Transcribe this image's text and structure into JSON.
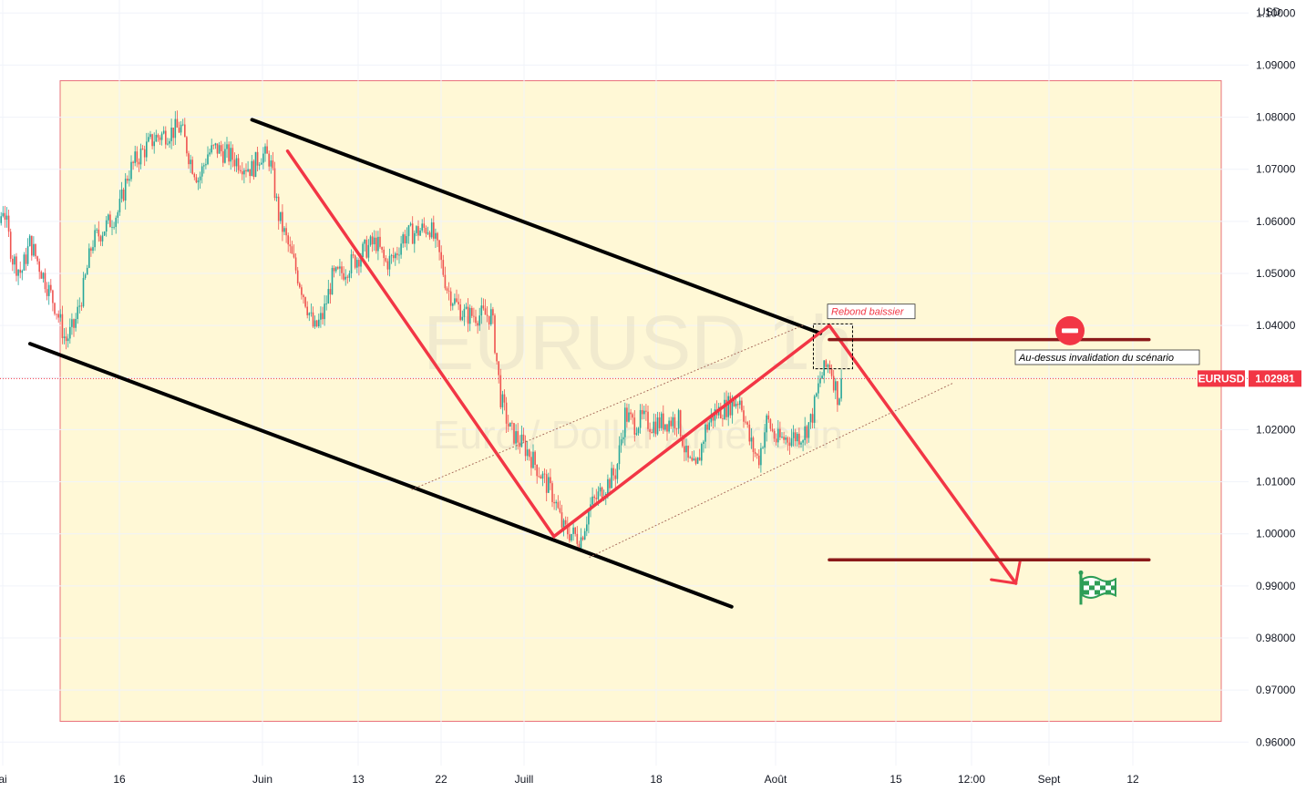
{
  "chart_data": {
    "type": "candlestick",
    "symbol": "EURUSD",
    "watermark_symbol": "EURUSD",
    "watermark_timeframe": "1h",
    "watermark_description": "Euro / Dollar Américain",
    "currency_label": "USD",
    "last_price": "1.02981",
    "y_ticks": [
      "1.10000",
      "1.09000",
      "1.08000",
      "1.07000",
      "1.06000",
      "1.05000",
      "1.04000",
      "1.03000",
      "1.02000",
      "1.01000",
      "1.00000",
      "0.99000",
      "0.98000",
      "0.97000",
      "0.96000"
    ],
    "x_ticks": [
      "ai",
      "16",
      "Juin",
      "13",
      "22",
      "Juill",
      "18",
      "Août",
      "15",
      "12:00",
      "Sept",
      "12"
    ],
    "ylim": [
      0.9555,
      1.1025
    ],
    "x_range": [
      "2022-05-05",
      "2022-09-19"
    ],
    "price_path": [
      [
        "2022-05-05",
        1.057
      ],
      [
        "2022-05-06",
        1.053
      ],
      [
        "2022-05-09",
        1.056
      ],
      [
        "2022-05-10",
        1.063
      ],
      [
        "2022-05-11",
        1.053
      ],
      [
        "2022-05-12",
        1.05
      ],
      [
        "2022-05-13",
        1.056
      ],
      [
        "2022-05-16",
        1.043
      ],
      [
        "2022-05-17",
        1.037
      ],
      [
        "2022-05-18",
        1.04
      ],
      [
        "2022-05-19",
        1.047
      ],
      [
        "2022-05-20",
        1.056
      ],
      [
        "2022-05-23",
        1.062
      ],
      [
        "2022-05-24",
        1.069
      ],
      [
        "2022-05-25",
        1.072
      ],
      [
        "2022-05-26",
        1.074
      ],
      [
        "2022-05-27",
        1.076
      ],
      [
        "2022-05-30",
        1.078
      ],
      [
        "2022-05-31",
        1.072
      ],
      [
        "2022-06-01",
        1.068
      ],
      [
        "2022-06-02",
        1.073
      ],
      [
        "2022-06-03",
        1.074
      ],
      [
        "2022-06-06",
        1.071
      ],
      [
        "2022-06-07",
        1.07
      ],
      [
        "2022-06-08",
        1.073
      ],
      [
        "2022-06-09",
        1.072
      ],
      [
        "2022-06-10",
        1.061
      ],
      [
        "2022-06-13",
        1.045
      ],
      [
        "2022-06-14",
        1.039
      ],
      [
        "2022-06-15",
        1.042
      ],
      [
        "2022-06-16",
        1.049
      ],
      [
        "2022-06-17",
        1.05
      ],
      [
        "2022-06-20",
        1.055
      ],
      [
        "2022-06-21",
        1.056
      ],
      [
        "2022-06-22",
        1.052
      ],
      [
        "2022-06-23",
        1.053
      ],
      [
        "2022-06-24",
        1.057
      ],
      [
        "2022-06-27",
        1.059
      ],
      [
        "2022-06-28",
        1.054
      ],
      [
        "2022-06-29",
        1.047
      ],
      [
        "2022-06-30",
        1.044
      ],
      [
        "2022-07-01",
        1.042
      ],
      [
        "2022-07-04",
        1.042
      ],
      [
        "2022-07-05",
        1.026
      ],
      [
        "2022-07-06",
        1.02
      ],
      [
        "2022-07-07",
        1.018
      ],
      [
        "2022-07-08",
        1.016
      ],
      [
        "2022-07-11",
        1.007
      ],
      [
        "2022-07-12",
        1.001
      ],
      [
        "2022-07-13",
        1.0
      ],
      [
        "2022-07-14",
        0.999
      ],
      [
        "2022-07-15",
        1.005
      ],
      [
        "2022-07-18",
        1.012
      ],
      [
        "2022-07-19",
        1.023
      ],
      [
        "2022-07-20",
        1.021
      ],
      [
        "2022-07-21",
        1.022
      ],
      [
        "2022-07-22",
        1.021
      ],
      [
        "2022-07-25",
        1.022
      ],
      [
        "2022-07-26",
        1.014
      ],
      [
        "2022-07-27",
        1.012
      ],
      [
        "2022-07-28",
        1.02
      ],
      [
        "2022-07-29",
        1.023
      ],
      [
        "2022-08-01",
        1.026
      ],
      [
        "2022-08-02",
        1.018
      ],
      [
        "2022-08-03",
        1.014
      ],
      [
        "2022-08-04",
        1.022
      ],
      [
        "2022-08-05",
        1.018
      ],
      [
        "2022-08-08",
        1.019
      ],
      [
        "2022-08-09",
        1.022
      ],
      [
        "2022-08-10",
        1.03
      ],
      [
        "2022-08-11",
        1.033
      ],
      [
        "2022-08-12",
        1.026
      ],
      [
        "2022-08-12T12:00",
        1.0298
      ]
    ],
    "background_zone": {
      "from": "2022-05-05",
      "to": "2022-09-18",
      "top": 1.087,
      "bottom": 0.964,
      "color": "#fff8d6"
    },
    "lines": [
      {
        "name": "channel-upper-line",
        "from": [
          "2022-06-07",
          1.0795
        ],
        "to": [
          "2022-08-10",
          1.0385
        ],
        "color": "#000000"
      },
      {
        "name": "channel-lower-line",
        "from": [
          "2022-05-13",
          1.0365
        ],
        "to": [
          "2022-07-31",
          0.986
        ],
        "color": "#000000"
      },
      {
        "name": "zigzag-line",
        "from": [
          "2022-06-11",
          1.0735
        ],
        "via": [
          [
            "2022-07-11",
            0.9995
          ],
          [
            "2022-08-11",
            1.04
          ]
        ],
        "to": [
          "2022-09-01",
          0.9905
        ],
        "color": "#f23645"
      },
      {
        "name": "invalidation-level-line",
        "from": [
          "2022-08-11",
          1.0373
        ],
        "to": [
          "2022-09-16",
          1.0373
        ],
        "color": "#8b1a1a"
      },
      {
        "name": "target-level-line",
        "from": [
          "2022-08-11",
          0.995
        ],
        "to": [
          "2022-09-16",
          0.995
        ],
        "color": "#8b1a1a"
      },
      {
        "name": "parallel-channel-top",
        "from": [
          "2022-06-25",
          1.0085
        ],
        "to": [
          "2022-08-08",
          1.04
        ],
        "color": "#a86b5c"
      },
      {
        "name": "parallel-channel-bottom",
        "from": [
          "2022-07-15",
          0.9955
        ],
        "to": [
          "2022-08-25",
          1.029
        ],
        "color": "#a86b5c"
      }
    ],
    "annotations": [
      {
        "text": "Rebond baissier",
        "color": "#f23645"
      },
      {
        "text": "Au-dessus invalidation du scénario",
        "color": "#000000"
      }
    ],
    "colors": {
      "up": "#26a69a",
      "down": "#ef5350",
      "price_tag": "#f23645"
    }
  }
}
